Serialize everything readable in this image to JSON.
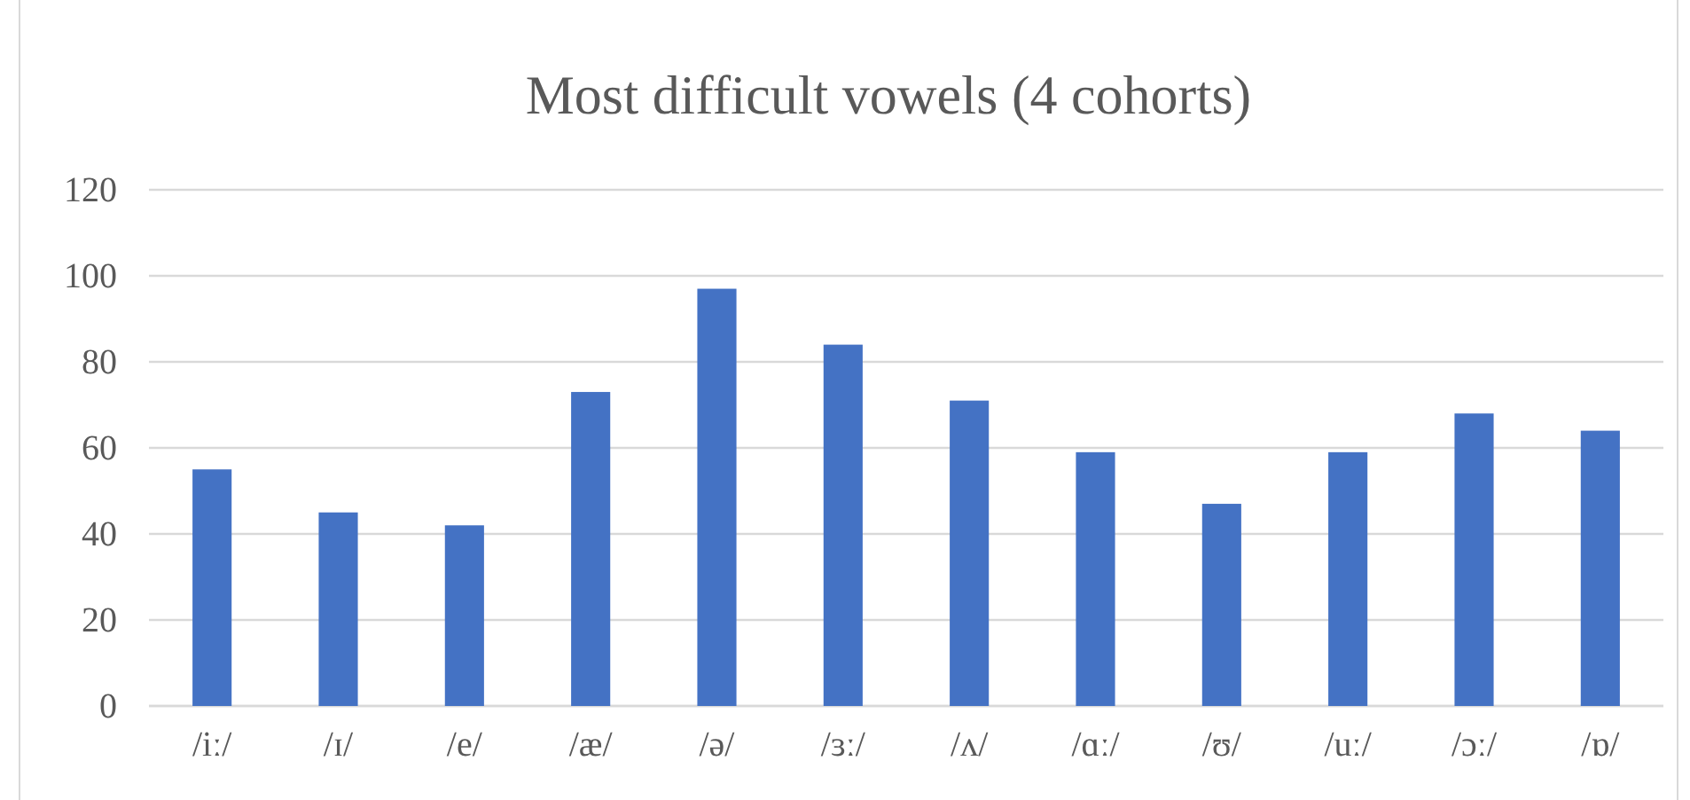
{
  "chart_data": {
    "type": "bar",
    "title": "Most difficult vowels (4 cohorts)",
    "categories": [
      "/iː/",
      "/ɪ/",
      "/e/",
      "/æ/",
      "/ə/",
      "/ɜː/",
      "/ʌ/",
      "/ɑː/",
      "/ʊ/",
      "/uː/",
      "/ɔː/",
      "/ɒ/"
    ],
    "values": [
      55,
      45,
      42,
      73,
      97,
      84,
      71,
      59,
      47,
      59,
      68,
      64
    ],
    "color": "#4472c4",
    "ylim": [
      0,
      120
    ],
    "yticks": [
      0,
      20,
      40,
      60,
      80,
      100,
      120
    ],
    "grid": "y"
  }
}
